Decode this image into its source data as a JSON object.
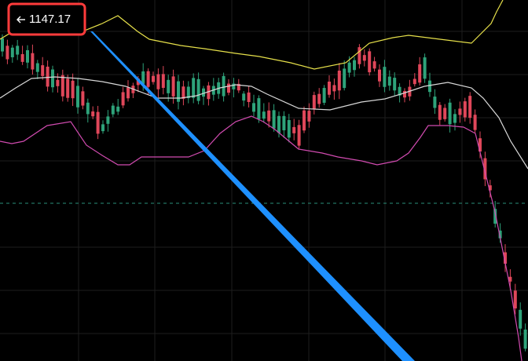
{
  "price_label": "1147.17"
}
